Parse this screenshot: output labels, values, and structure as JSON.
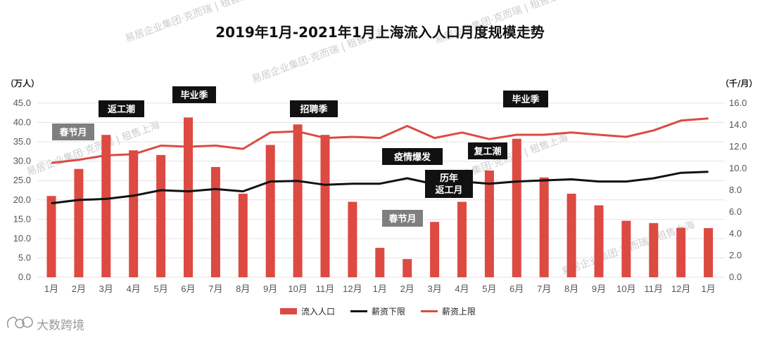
{
  "chart_data": {
    "type": "bar",
    "title": "2019年1月-2021年1月上海流入人口月度规模走势",
    "categories": [
      "1月",
      "2月",
      "3月",
      "4月",
      "5月",
      "6月",
      "7月",
      "8月",
      "9月",
      "10月",
      "11月",
      "12月",
      "1月",
      "2月",
      "3月",
      "4月",
      "5月",
      "6月",
      "7月",
      "8月",
      "9月",
      "10月",
      "11月",
      "12月",
      "1月"
    ],
    "left_axis": {
      "unit": "（万人）",
      "ylim": [
        0,
        45
      ],
      "ticks": [
        "0.0",
        "5.0",
        "10.0",
        "15.0",
        "20.0",
        "25.0",
        "30.0",
        "35.0",
        "40.0",
        "45.0"
      ]
    },
    "right_axis": {
      "unit": "（千/月）",
      "ylim": [
        0,
        16
      ],
      "ticks": [
        "0.0",
        "2.0",
        "4.0",
        "6.0",
        "8.0",
        "10.0",
        "12.0",
        "14.0",
        "16.0"
      ]
    },
    "series": [
      {
        "name": "流入人口",
        "kind": "bar",
        "axis": "left",
        "color": "#dc4a42",
        "values": [
          21.0,
          28.0,
          36.8,
          32.8,
          31.6,
          41.3,
          28.5,
          21.6,
          34.2,
          39.5,
          36.8,
          19.5,
          7.6,
          4.7,
          14.3,
          19.5,
          27.6,
          35.8,
          25.8,
          21.6,
          18.6,
          14.6,
          14.0,
          12.8,
          12.7
        ]
      },
      {
        "name": "薪资下限",
        "kind": "line",
        "axis": "right",
        "color": "#111111",
        "values": [
          6.8,
          7.1,
          7.2,
          7.5,
          8.0,
          7.9,
          8.1,
          7.9,
          8.8,
          8.85,
          8.5,
          8.6,
          8.6,
          9.1,
          8.55,
          8.8,
          8.6,
          8.8,
          8.9,
          9.0,
          8.8,
          8.8,
          9.1,
          9.6,
          9.7
        ]
      },
      {
        "name": "薪资上限",
        "kind": "line",
        "axis": "right",
        "color": "#dc4a42",
        "values": [
          10.5,
          10.8,
          11.2,
          11.3,
          12.1,
          12.0,
          12.1,
          11.8,
          13.3,
          13.4,
          12.8,
          12.9,
          12.8,
          13.9,
          12.8,
          13.3,
          12.7,
          13.1,
          13.1,
          13.3,
          13.1,
          12.9,
          13.5,
          14.4,
          14.6
        ]
      }
    ],
    "annotations": [
      {
        "label": "春节月",
        "style": "gray",
        "at": 1
      },
      {
        "label": "返工潮",
        "style": "black",
        "at": 2
      },
      {
        "label": "毕业季",
        "style": "black",
        "at": 5
      },
      {
        "label": "招聘季",
        "style": "black",
        "at": 9
      },
      {
        "label": "疫情爆发",
        "style": "black",
        "at": 13
      },
      {
        "label": "历年返工月",
        "style": "black",
        "at": 14,
        "lines": [
          "历年",
          "返工月"
        ]
      },
      {
        "label": "春节月",
        "style": "gray",
        "at": 12.5
      },
      {
        "label": "复工潮",
        "style": "black",
        "at": 16
      },
      {
        "label": "毕业季",
        "style": "black",
        "at": 17
      }
    ],
    "legend_position": "bottom"
  },
  "watermark": {
    "logo_text": "大数跨境",
    "marks": [
      "易居企业集团·克而瑞 | 租售上海",
      "易居企业集团·克而瑞 | 租售上海",
      "易居企业集团·克而瑞 | 租售上海",
      "易居企业集团·克而瑞 | 租售上海",
      "易居企业集团·克而瑞 | 租售上海",
      "易居企业集团·克而瑞 | 租售上海"
    ]
  }
}
